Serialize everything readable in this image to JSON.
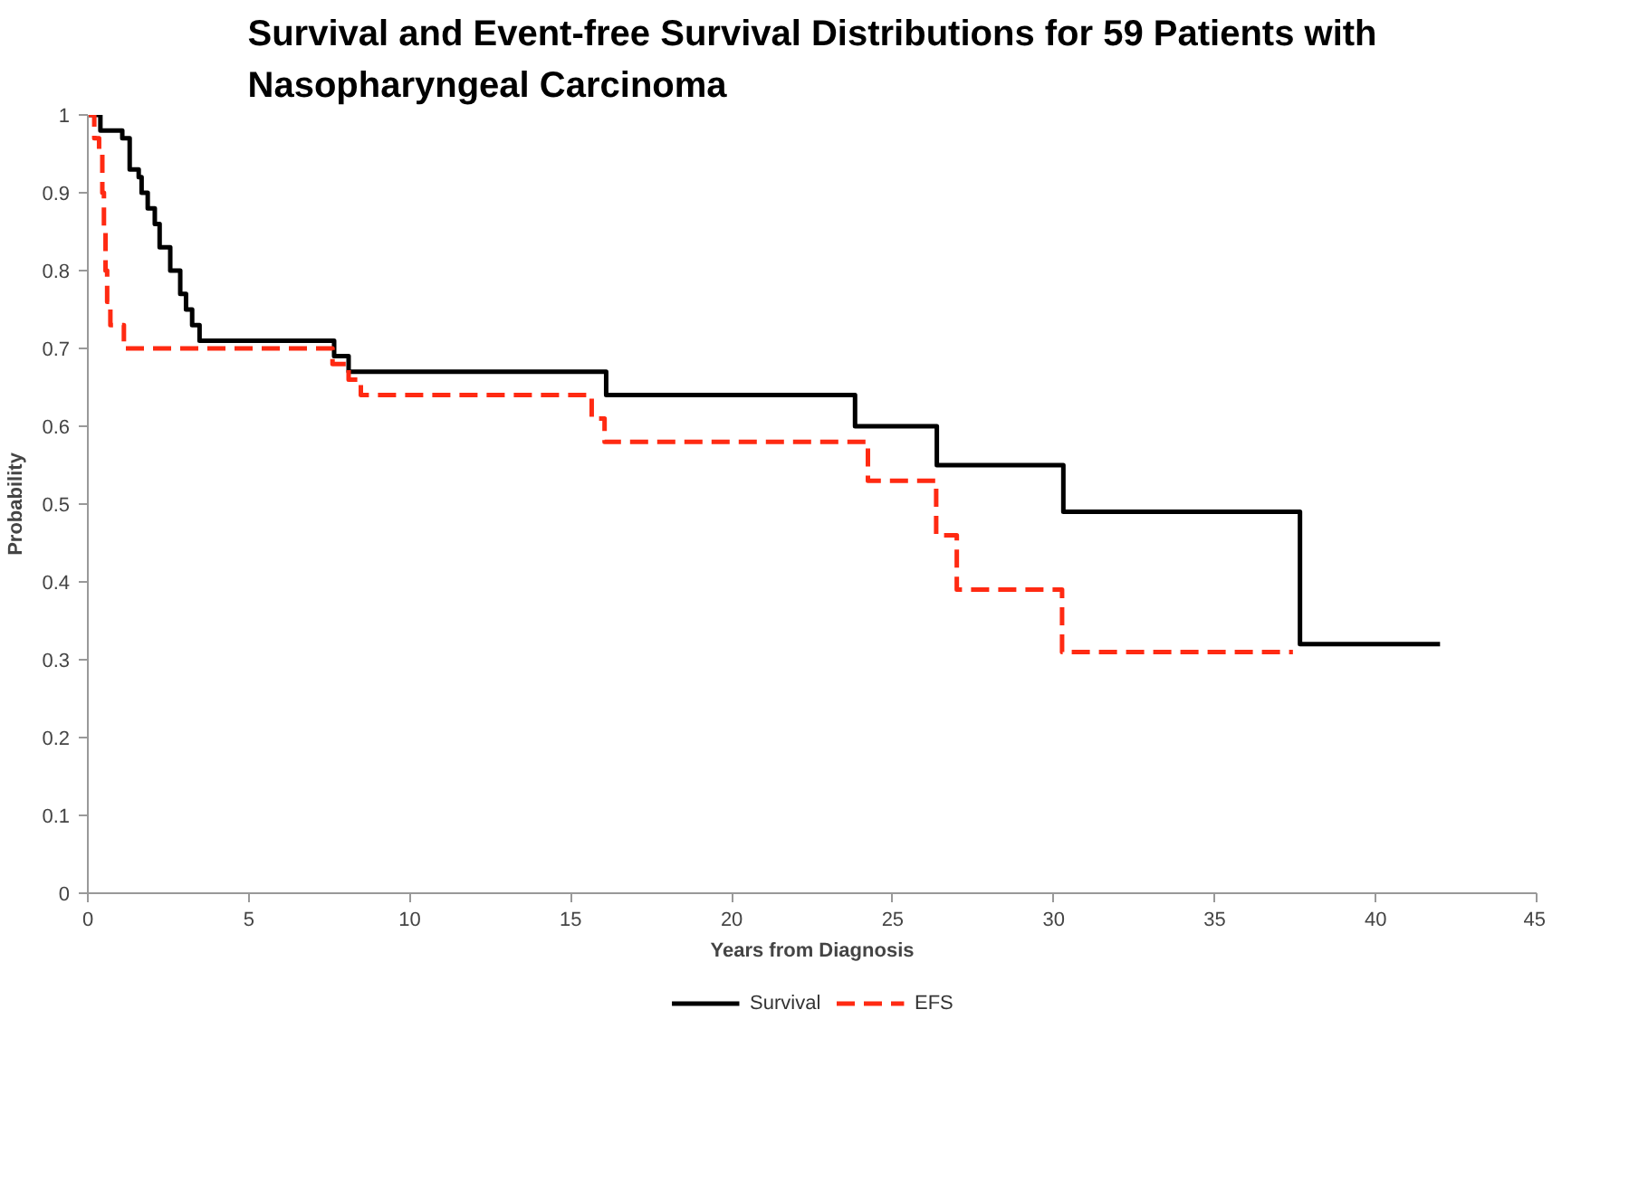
{
  "chart_data": {
    "type": "step",
    "title": "Survival and Event-free Survival Distributions for 59 Patients with Nasopharyngeal Carcinoma",
    "xlabel": "Years from Diagnosis",
    "ylabel": "Probability",
    "xlim": [
      0,
      45
    ],
    "xticks": [
      0,
      5,
      10,
      15,
      20,
      25,
      30,
      35,
      40,
      45
    ],
    "ylim": [
      0,
      1
    ],
    "yticks": [
      0,
      0.1,
      0.2,
      0.3,
      0.4,
      0.5,
      0.6,
      0.7,
      0.8,
      0.9,
      1
    ],
    "grid": false,
    "legend": "bottom",
    "series": [
      {
        "name": "Survival",
        "color": "#000000",
        "line_style": "solid",
        "x": [
          0,
          0.39,
          1.07,
          1.3,
          1.58,
          1.67,
          1.86,
          2.08,
          2.23,
          2.56,
          2.87,
          3.05,
          3.24,
          3.47,
          7.65,
          8.1,
          16.1,
          23.83,
          26.37,
          30.3,
          37.65,
          42.0
        ],
        "values": [
          1,
          0.98,
          0.97,
          0.93,
          0.92,
          0.9,
          0.88,
          0.86,
          0.83,
          0.8,
          0.77,
          0.75,
          0.73,
          0.71,
          0.69,
          0.67,
          0.64,
          0.6,
          0.55,
          0.49,
          0.32,
          0.32
        ]
      },
      {
        "name": "EFS",
        "color": "#ff2a12",
        "line_style": "dashed",
        "x": [
          0,
          0.2,
          0.35,
          0.45,
          0.5,
          0.55,
          0.6,
          0.7,
          1.12,
          7.6,
          8.1,
          8.48,
          15.65,
          16.05,
          24.23,
          26.35,
          26.99,
          30.26,
          37.43
        ],
        "values": [
          1,
          0.97,
          0.95,
          0.9,
          0.85,
          0.8,
          0.76,
          0.73,
          0.7,
          0.68,
          0.66,
          0.64,
          0.61,
          0.58,
          0.53,
          0.46,
          0.39,
          0.31,
          0.31
        ]
      }
    ]
  }
}
